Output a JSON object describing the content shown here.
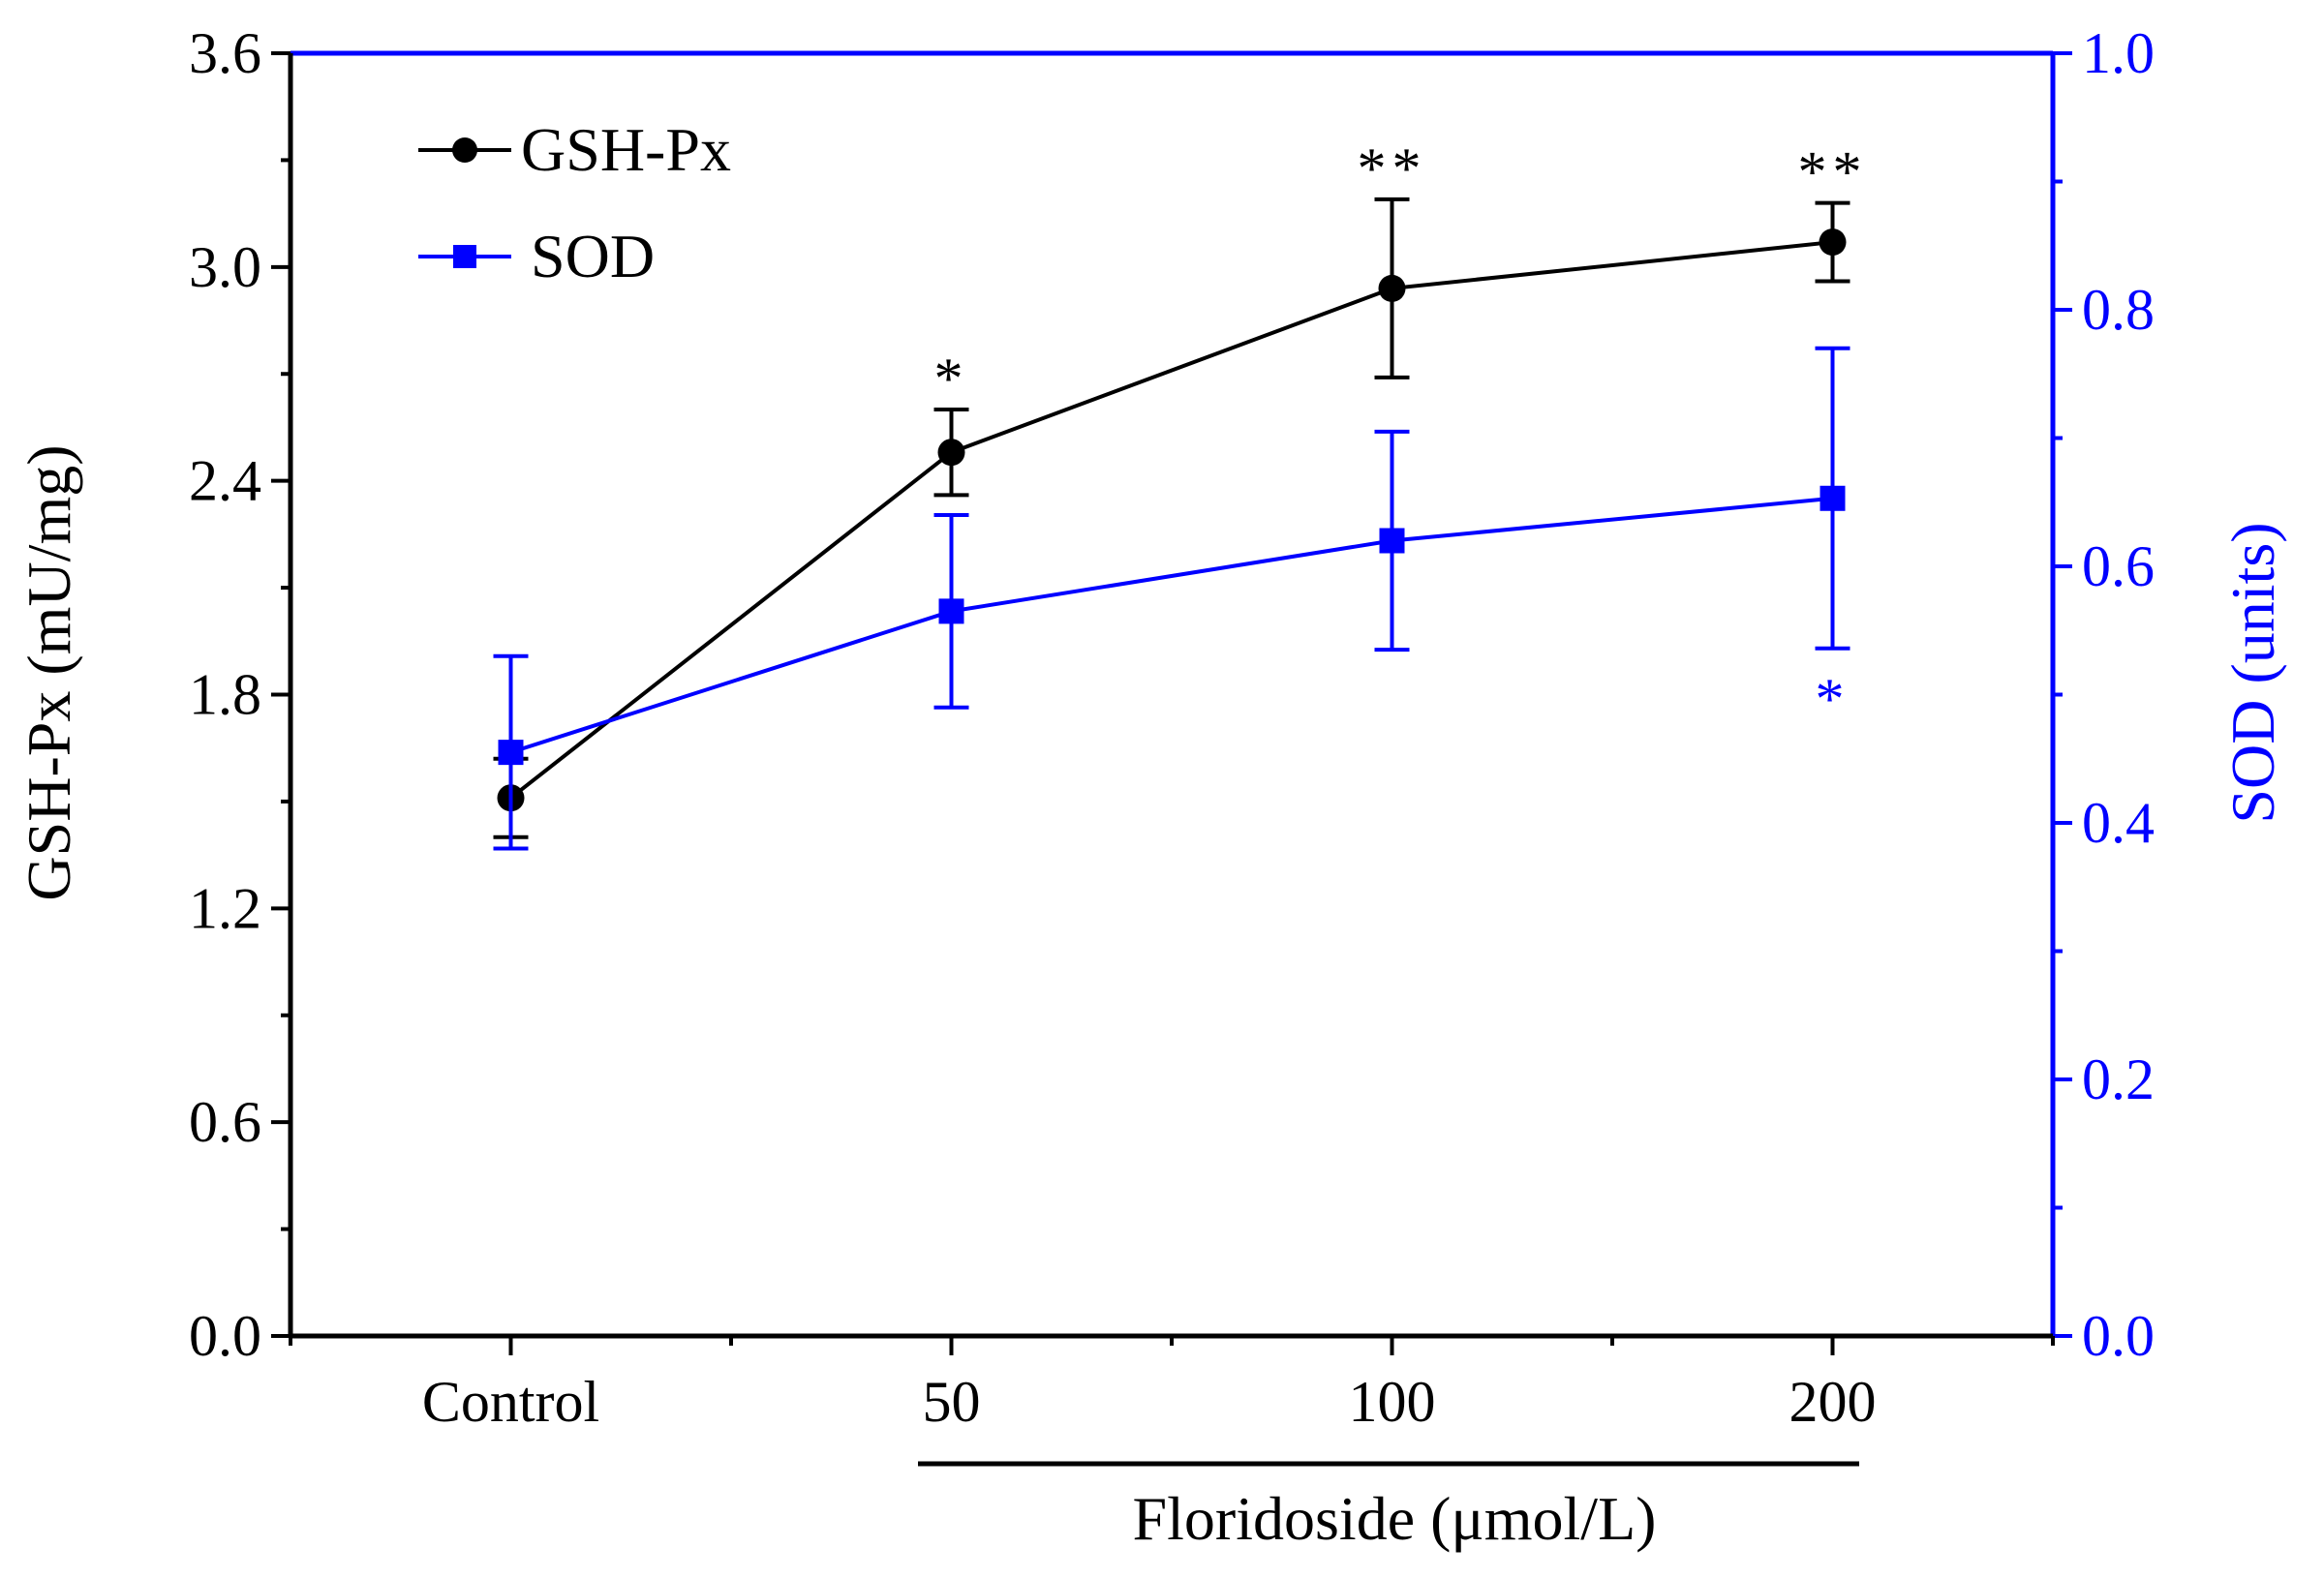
{
  "chart_data": {
    "type": "line",
    "title": "",
    "categories": [
      "Control",
      "50",
      "100",
      "200"
    ],
    "xlabel": "Floridoside (μmol/L)",
    "ylabel_left": "GSH-Px (mU/mg)",
    "ylabel_right": "SOD (units)",
    "y_left": {
      "lim": [
        0,
        3.6
      ],
      "ticks": [
        0.0,
        0.6,
        1.2,
        1.8,
        2.4,
        3.0,
        3.6
      ],
      "tick_labels": [
        "0.0",
        "0.6",
        "1.2",
        "1.8",
        "2.4",
        "3.0",
        "3.6"
      ]
    },
    "y_right": {
      "lim": [
        0,
        1.0
      ],
      "ticks": [
        0.0,
        0.2,
        0.4,
        0.6,
        0.8,
        1.0
      ],
      "tick_labels": [
        "0.0",
        "0.2",
        "0.4",
        "0.6",
        "0.8",
        "1.0"
      ]
    },
    "legend_placement": "top-left",
    "series": [
      {
        "name": "GSH-Px",
        "axis": "left",
        "color": "#000000",
        "marker": "circle",
        "values": [
          1.51,
          2.48,
          2.94,
          3.07
        ],
        "errors": [
          0.11,
          0.12,
          0.25,
          0.11
        ],
        "significance": [
          "",
          "*",
          "**",
          "**"
        ],
        "significance_position": "above"
      },
      {
        "name": "SOD",
        "axis": "right",
        "color": "#0000ff",
        "marker": "square",
        "values": [
          0.455,
          0.565,
          0.62,
          0.653
        ],
        "errors": [
          0.075,
          0.075,
          0.085,
          0.117
        ],
        "significance": [
          "",
          "",
          "",
          "*"
        ],
        "significance_position": "below"
      }
    ]
  }
}
